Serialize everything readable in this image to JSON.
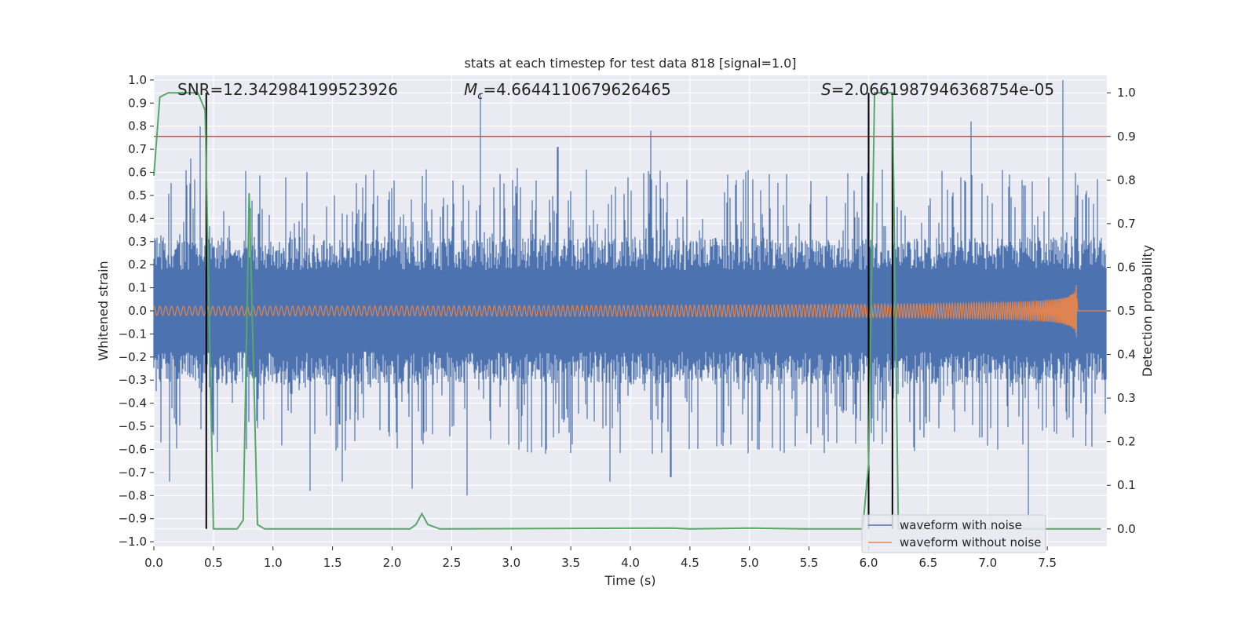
{
  "chart_data": {
    "type": "line",
    "title": "stats at each timestep for test data 818 [signal=1.0]",
    "xlabel": "Time (s)",
    "ylabel_left": "Whitened strain",
    "ylabel_right": "Detection probability",
    "xlim": [
      0.0,
      8.0
    ],
    "ylim_left": [
      -1.02,
      1.02
    ],
    "ylim_right": [
      -0.04,
      1.04
    ],
    "x_ticks": [
      "0.0",
      "0.5",
      "1.0",
      "1.5",
      "2.0",
      "2.5",
      "3.0",
      "3.5",
      "4.0",
      "4.5",
      "5.0",
      "5.5",
      "6.0",
      "6.5",
      "7.0",
      "7.5"
    ],
    "x_tick_values": [
      0.0,
      0.5,
      1.0,
      1.5,
      2.0,
      2.5,
      3.0,
      3.5,
      4.0,
      4.5,
      5.0,
      5.5,
      6.0,
      6.5,
      7.0,
      7.5
    ],
    "y_ticks_left": [
      "1.0",
      "0.9",
      "0.8",
      "0.7",
      "0.6",
      "0.5",
      "0.4",
      "0.3",
      "0.2",
      "0.1",
      "0.0",
      "−0.1",
      "−0.2",
      "−0.3",
      "−0.4",
      "−0.5",
      "−0.6",
      "−0.7",
      "−0.8",
      "−0.9",
      "−1.0"
    ],
    "y_tick_values_left": [
      1.0,
      0.9,
      0.8,
      0.7,
      0.6,
      0.5,
      0.4,
      0.3,
      0.2,
      0.1,
      0.0,
      -0.1,
      -0.2,
      -0.3,
      -0.4,
      -0.5,
      -0.6,
      -0.7,
      -0.8,
      -0.9,
      -1.0
    ],
    "y_ticks_right": [
      "1.0",
      "0.9",
      "0.8",
      "0.7",
      "0.6",
      "0.5",
      "0.4",
      "0.3",
      "0.2",
      "0.1",
      "0.0"
    ],
    "y_tick_values_right": [
      1.0,
      0.9,
      0.8,
      0.7,
      0.6,
      0.5,
      0.4,
      0.3,
      0.2,
      0.1,
      0.0
    ],
    "grid": true,
    "legend_position": "lower-right",
    "annotations": {
      "snr": "SNR=12.342984199523926",
      "mc_symbol": "M",
      "mc_sub": "c",
      "mc_value": "=4.6644110679626465",
      "s_symbol": "S",
      "s_value": "=2.0661987946368754e-05"
    },
    "series": [
      {
        "name": "waveform with noise",
        "color": "#4c72b0",
        "axis": "left",
        "envelope_typical": [
          -0.32,
          0.32
        ],
        "spikes": [
          {
            "x": 0.13,
            "y": -0.74
          },
          {
            "x": 0.31,
            "y": 0.66
          },
          {
            "x": 0.39,
            "y": 0.8
          },
          {
            "x": 0.88,
            "y": 0.42
          },
          {
            "x": 1.31,
            "y": -0.78
          },
          {
            "x": 1.58,
            "y": -0.74
          },
          {
            "x": 1.78,
            "y": 0.59
          },
          {
            "x": 2.17,
            "y": -0.77
          },
          {
            "x": 2.63,
            "y": -0.8
          },
          {
            "x": 2.74,
            "y": 0.94
          },
          {
            "x": 3.39,
            "y": 0.71
          },
          {
            "x": 3.83,
            "y": -0.74
          },
          {
            "x": 4.17,
            "y": 0.78
          },
          {
            "x": 4.34,
            "y": -0.72
          },
          {
            "x": 6.86,
            "y": 0.82
          },
          {
            "x": 7.34,
            "y": -0.9
          },
          {
            "x": 7.63,
            "y": 1.0
          }
        ]
      },
      {
        "name": "waveform without noise",
        "color": "#dd8452",
        "axis": "left",
        "chirp_start_amplitude": 0.02,
        "chirp_peak_amplitude": 0.27,
        "chirp_end_time": 7.75
      },
      {
        "name": "",
        "color": "#55a868",
        "axis": "right",
        "x": [
          0.0,
          0.05,
          0.12,
          0.37,
          0.43,
          0.5,
          0.7,
          0.75,
          0.8,
          0.87,
          0.93,
          2.15,
          2.2,
          2.25,
          2.3,
          2.4,
          4.35,
          4.5,
          5.0,
          5.5,
          5.95,
          6.0,
          6.05,
          6.2,
          6.25,
          6.3,
          6.4,
          7.5,
          7.95
        ],
        "y": [
          0.81,
          0.99,
          1.0,
          1.0,
          0.96,
          0.0,
          0.0,
          0.02,
          0.77,
          0.01,
          0.0,
          0.0,
          0.01,
          0.035,
          0.01,
          0.0,
          0.002,
          0.0,
          0.002,
          0.0,
          0.0,
          0.15,
          1.0,
          1.0,
          0.0,
          0.0,
          0.0,
          0.0,
          0.0
        ]
      }
    ],
    "threshold": {
      "axis": "right",
      "value": 0.9,
      "color": "#c44e52"
    },
    "markers": {
      "color": "#000000",
      "x": [
        0.44,
        6.0,
        6.2
      ],
      "y_top": 1.0,
      "y_bottom": 0.0
    }
  }
}
